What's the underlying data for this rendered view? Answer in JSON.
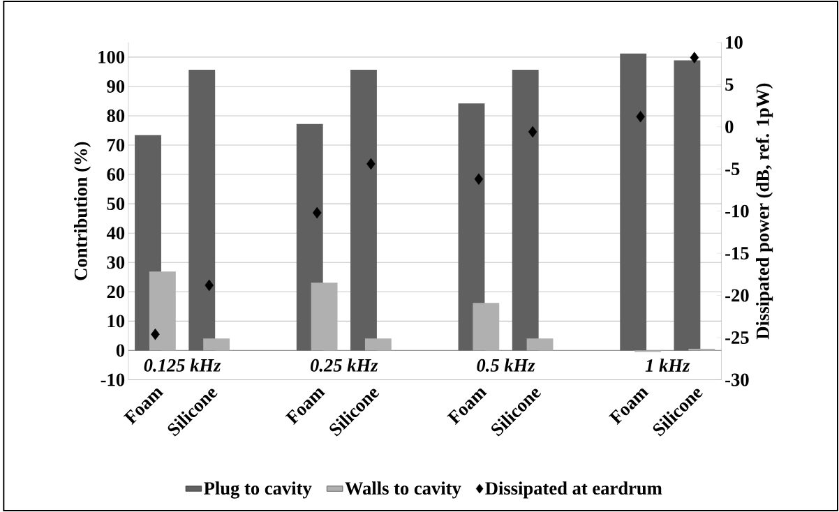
{
  "chart_data": {
    "type": "bar",
    "ylabel": "Contribution (%)",
    "y2label": "Dissipated power (dB, ref. 1pW)",
    "categories": [
      "Foam",
      "Silicone",
      null,
      "Foam",
      "Silicone",
      null,
      "Foam",
      "Silicone",
      null,
      "Foam",
      "Silicone"
    ],
    "series": [
      {
        "name": "Plug to cavity",
        "color": "#606060",
        "values": [
          73.4,
          95.7,
          null,
          77.2,
          95.7,
          null,
          84.2,
          95.7,
          null,
          101.2,
          98.9
        ]
      },
      {
        "name": "Walls to cavity",
        "color": "#b0b0b0",
        "values": [
          26.9,
          4.1,
          null,
          23.1,
          4.1,
          null,
          16.2,
          4.1,
          null,
          -0.5,
          0.6
        ]
      },
      {
        "name": "Dissipated at eardrum",
        "type": "scatter",
        "axis": "y2",
        "marker": "diamond",
        "color": "#000000",
        "values": [
          -24.6,
          -18.8,
          null,
          -10.2,
          -4.4,
          null,
          -6.2,
          -0.6,
          null,
          1.2,
          8.2
        ]
      }
    ],
    "annotations": [
      "0.125 kHz",
      "0.25 kHz",
      "0.5 kHz",
      "1 kHz"
    ],
    "ylim": [
      -10,
      105
    ],
    "yticks": [
      -10,
      0,
      10,
      20,
      30,
      40,
      50,
      60,
      70,
      80,
      90,
      100
    ],
    "y2lim": [
      -30,
      10
    ],
    "y2ticks": [
      -30,
      -25,
      -20,
      -15,
      -10,
      -5,
      0,
      5,
      10
    ],
    "grid": "y",
    "legend": "bottom"
  }
}
